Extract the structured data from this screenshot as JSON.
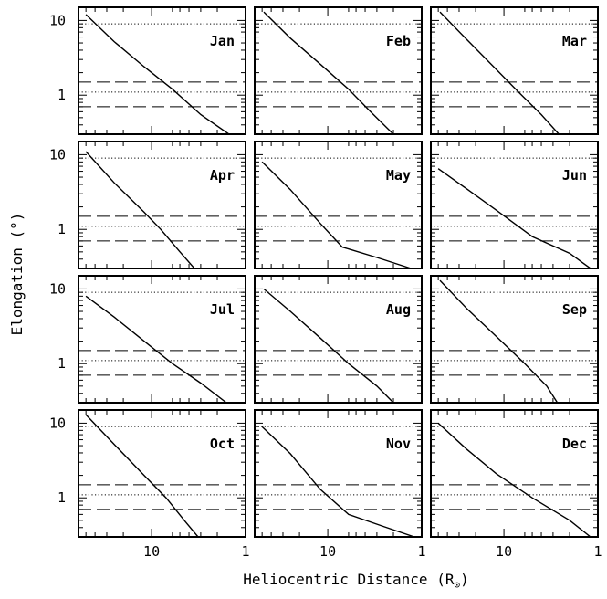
{
  "chart_data": {
    "type": "line",
    "layout": "3x4 small multiples",
    "xlabel": "Heliocentric Distance (R",
    "xlabel_symbol": "⊙",
    "xlabel_close": ")",
    "ylabel": "Elongation (°)",
    "x_scale": "log",
    "y_scale": "log",
    "x_reversed": true,
    "xlim": [
      60,
      1
    ],
    "ylim": [
      0.3,
      15
    ],
    "x_tick_labels": [
      {
        "value": 10,
        "label": "10"
      },
      {
        "value": 1,
        "label": "1"
      }
    ],
    "y_tick_labels": [
      {
        "value": 10,
        "label": "10"
      },
      {
        "value": 1,
        "label": "1"
      }
    ],
    "reference_lines": [
      {
        "style": "dotted",
        "y": 9
      },
      {
        "style": "dashed",
        "y": 1.5
      },
      {
        "style": "dotted",
        "y": 1.1
      },
      {
        "style": "dashed",
        "y": 0.7
      }
    ],
    "panels": [
      {
        "label": "Jan",
        "points": [
          [
            50,
            12
          ],
          [
            25,
            5.2
          ],
          [
            12,
            2.4
          ],
          [
            6,
            1.2
          ],
          [
            3,
            0.55
          ],
          [
            1.5,
            0.3
          ]
        ]
      },
      {
        "label": "Feb",
        "points": [
          [
            48,
            13
          ],
          [
            25,
            5.8
          ],
          [
            12,
            2.6
          ],
          [
            6,
            1.2
          ],
          [
            3.5,
            0.6
          ],
          [
            2,
            0.3
          ]
        ]
      },
      {
        "label": "Mar",
        "points": [
          [
            48,
            13
          ],
          [
            25,
            5.6
          ],
          [
            12,
            2.2
          ],
          [
            7,
            1.1
          ],
          [
            4,
            0.55
          ],
          [
            2.6,
            0.3
          ]
        ]
      },
      {
        "label": "Apr",
        "points": [
          [
            50,
            11
          ],
          [
            25,
            4.2
          ],
          [
            12,
            1.7
          ],
          [
            8,
            1.0
          ],
          [
            5,
            0.5
          ],
          [
            3.5,
            0.3
          ]
        ]
      },
      {
        "label": "May",
        "points": [
          [
            50,
            8
          ],
          [
            25,
            3.4
          ],
          [
            12,
            1.2
          ],
          [
            7,
            0.58
          ],
          [
            3,
            0.42
          ],
          [
            1.3,
            0.3
          ]
        ]
      },
      {
        "label": "Jun",
        "points": [
          [
            50,
            6.5
          ],
          [
            25,
            3.5
          ],
          [
            12,
            1.8
          ],
          [
            5,
            0.8
          ],
          [
            2,
            0.48
          ],
          [
            1.2,
            0.3
          ]
        ]
      },
      {
        "label": "Jul",
        "points": [
          [
            50,
            8
          ],
          [
            25,
            4.2
          ],
          [
            12,
            2.0
          ],
          [
            6,
            1.0
          ],
          [
            3,
            0.55
          ],
          [
            1.6,
            0.3
          ]
        ]
      },
      {
        "label": "Aug",
        "points": [
          [
            48,
            10
          ],
          [
            25,
            5.0
          ],
          [
            12,
            2.2
          ],
          [
            6,
            1.0
          ],
          [
            3,
            0.5
          ],
          [
            2,
            0.3
          ]
        ]
      },
      {
        "label": "Sep",
        "points": [
          [
            48,
            13
          ],
          [
            25,
            5.5
          ],
          [
            12,
            2.3
          ],
          [
            6,
            1.0
          ],
          [
            3.5,
            0.5
          ],
          [
            2.7,
            0.3
          ]
        ]
      },
      {
        "label": "Oct",
        "points": [
          [
            50,
            13
          ],
          [
            25,
            5.2
          ],
          [
            12,
            2.0
          ],
          [
            7,
            1.0
          ],
          [
            4.5,
            0.5
          ],
          [
            3.2,
            0.3
          ]
        ]
      },
      {
        "label": "Nov",
        "points": [
          [
            50,
            9
          ],
          [
            25,
            3.9
          ],
          [
            12,
            1.3
          ],
          [
            6,
            0.6
          ],
          [
            2.5,
            0.41
          ],
          [
            1.2,
            0.3
          ]
        ]
      },
      {
        "label": "Dec",
        "points": [
          [
            50,
            10
          ],
          [
            25,
            4.5
          ],
          [
            12,
            2.1
          ],
          [
            5,
            1.0
          ],
          [
            2,
            0.5
          ],
          [
            1.2,
            0.3
          ]
        ]
      }
    ]
  }
}
